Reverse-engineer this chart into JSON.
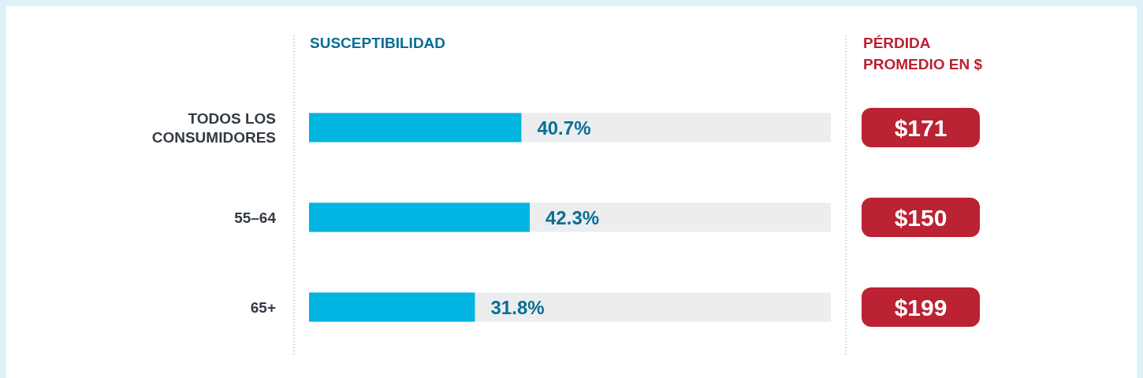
{
  "chart_data": [
    {
      "type": "bar",
      "orientation": "horizontal",
      "title": "SUSCEPTIBILIDAD",
      "categories": [
        "TODOS LOS CONSUMIDORES",
        "55–64",
        "65+"
      ],
      "values": [
        40.7,
        42.3,
        31.8
      ],
      "value_labels": [
        "40.7%",
        "42.3%",
        "31.8%"
      ],
      "color": "#00b5e2",
      "xlim": [
        0,
        100
      ],
      "tick_labels": "y"
    },
    {
      "type": "other",
      "title": "PÉRDIDA PROMEDIO EN $",
      "categories": [
        null,
        null,
        null
      ],
      "values": [
        171,
        150,
        199
      ],
      "value_labels": [
        "$171",
        "$150",
        "$199"
      ],
      "color": "#bb2233"
    }
  ]
}
